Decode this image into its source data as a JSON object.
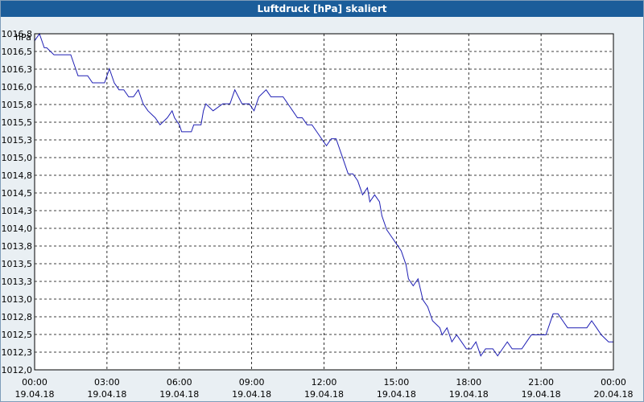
{
  "window": {
    "title": "Luftdruck [hPa] skaliert"
  },
  "chart_data": {
    "type": "line",
    "title": "Luftdruck [hPa] skaliert",
    "ylabel": "hPa",
    "xlabel": "",
    "xlim": [
      0,
      24
    ],
    "ylim": [
      1012.0,
      1016.8
    ],
    "grid": true,
    "legend": "none",
    "line_color": "#1f1fb4",
    "y_ticks": [
      "1012,0",
      "1012,3",
      "1012,5",
      "1012,8",
      "1013,0",
      "1013,3",
      "1013,5",
      "1013,8",
      "1014,0",
      "1014,3",
      "1014,5",
      "1014,8",
      "1015,0",
      "1015,3",
      "1015,5",
      "1015,8",
      "1016,0",
      "1016,3",
      "1016,5",
      "1016,8"
    ],
    "x_ticks": [
      {
        "time": "00:00",
        "date": "19.04.18"
      },
      {
        "time": "03:00",
        "date": "19.04.18"
      },
      {
        "time": "06:00",
        "date": "19.04.18"
      },
      {
        "time": "09:00",
        "date": "19.04.18"
      },
      {
        "time": "12:00",
        "date": "19.04.18"
      },
      {
        "time": "15:00",
        "date": "19.04.18"
      },
      {
        "time": "18:00",
        "date": "19.04.18"
      },
      {
        "time": "21:00",
        "date": "19.04.18"
      },
      {
        "time": "00:00",
        "date": "20.04.18"
      }
    ],
    "series": [
      {
        "x": [
          0.0,
          0.2,
          0.4,
          0.5,
          0.8,
          1.0,
          1.5,
          1.7,
          1.8,
          2.0,
          2.2,
          2.4,
          2.6,
          2.9,
          3.1,
          3.3,
          3.5,
          3.7,
          3.9,
          4.1,
          4.3,
          4.5,
          4.7,
          5.0,
          5.2,
          5.5,
          5.7,
          5.8,
          6.0,
          6.1,
          6.3,
          6.5,
          6.6,
          6.9,
          7.0,
          7.1,
          7.4,
          7.8,
          8.0,
          8.1,
          8.3,
          8.6,
          8.7,
          8.9,
          9.1,
          9.3,
          9.6,
          9.8,
          10.0,
          10.1,
          10.3,
          10.5,
          10.7,
          10.9,
          11.1,
          11.3,
          11.5,
          11.7,
          11.9,
          12.1,
          12.3,
          12.5,
          12.8,
          13.0,
          13.2,
          13.4,
          13.6,
          13.8,
          13.9,
          14.1,
          14.3,
          14.4,
          14.6,
          14.8,
          15.0,
          15.2,
          15.4,
          15.5,
          15.7,
          15.9,
          16.1,
          16.3,
          16.5,
          16.8,
          16.9,
          17.1,
          17.3,
          17.5,
          17.7,
          17.9,
          18.1,
          18.3,
          18.5,
          18.7,
          19.0,
          19.2,
          19.4,
          19.6,
          19.8,
          20.0,
          20.2,
          20.4,
          20.6,
          20.8,
          21.0,
          21.2,
          21.5,
          21.7,
          21.9,
          22.1,
          22.3,
          22.6,
          22.8,
          22.9,
          23.1,
          23.3,
          23.5,
          23.8,
          24.0
        ],
        "values": [
          1016.7,
          1016.8,
          1016.6,
          1016.6,
          1016.5,
          1016.5,
          1016.5,
          1016.3,
          1016.2,
          1016.2,
          1016.2,
          1016.1,
          1016.1,
          1016.1,
          1016.3,
          1016.1,
          1016.0,
          1016.0,
          1015.9,
          1015.9,
          1016.0,
          1015.8,
          1015.7,
          1015.6,
          1015.5,
          1015.6,
          1015.7,
          1015.6,
          1015.5,
          1015.4,
          1015.4,
          1015.4,
          1015.5,
          1015.5,
          1015.7,
          1015.8,
          1015.7,
          1015.8,
          1015.8,
          1015.8,
          1016.0,
          1015.8,
          1015.8,
          1015.8,
          1015.7,
          1015.9,
          1016.0,
          1015.9,
          1015.9,
          1015.9,
          1015.9,
          1015.8,
          1015.7,
          1015.6,
          1015.6,
          1015.5,
          1015.5,
          1015.4,
          1015.3,
          1015.2,
          1015.3,
          1015.3,
          1015.0,
          1014.8,
          1014.8,
          1014.7,
          1014.5,
          1014.6,
          1014.4,
          1014.5,
          1014.4,
          1014.2,
          1014.0,
          1013.9,
          1013.8,
          1013.7,
          1013.5,
          1013.3,
          1013.2,
          1013.3,
          1013.0,
          1012.9,
          1012.7,
          1012.6,
          1012.5,
          1012.6,
          1012.4,
          1012.5,
          1012.4,
          1012.3,
          1012.3,
          1012.4,
          1012.2,
          1012.3,
          1012.3,
          1012.2,
          1012.3,
          1012.4,
          1012.3,
          1012.3,
          1012.3,
          1012.4,
          1012.5,
          1012.5,
          1012.5,
          1012.5,
          1012.8,
          1012.8,
          1012.7,
          1012.6,
          1012.6,
          1012.6,
          1012.6,
          1012.6,
          1012.7,
          1012.6,
          1012.5,
          1012.4,
          1012.4
        ]
      }
    ]
  }
}
